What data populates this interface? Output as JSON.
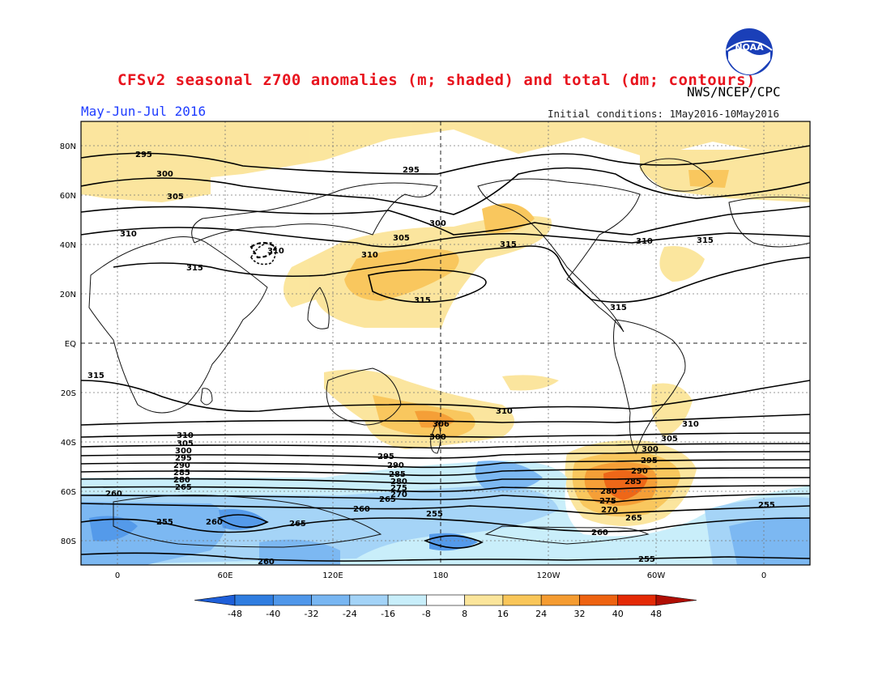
{
  "header": {
    "title": "CFSv2 seasonal z700 anomalies (m; shaded) and total (dm; contours)",
    "agency": "NWS/NCEP/CPC",
    "period": "May-Jun-Jul 2016",
    "initial_conditions": "Initial conditions: 1May2016-10May2016",
    "logo_text": "NOAA"
  },
  "map": {
    "lat_labels": [
      "80N",
      "60N",
      "40N",
      "20N",
      "EQ",
      "20S",
      "40S",
      "60S",
      "80S"
    ],
    "lon_labels": [
      "0",
      "60E",
      "120E",
      "180",
      "120W",
      "60W",
      "0"
    ],
    "contour_labels": [
      "295",
      "300",
      "305",
      "310",
      "315",
      "300",
      "295",
      "315",
      "305",
      "310",
      "315",
      "310",
      "315",
      "315",
      "310",
      "315",
      "306",
      "300",
      "310",
      "305",
      "310",
      "300",
      "295",
      "290",
      "285",
      "280",
      "275",
      "270",
      "265",
      "260",
      "255",
      "260",
      "265",
      "260",
      "255",
      "295",
      "290",
      "285",
      "280",
      "275",
      "270",
      "265",
      "255",
      "260",
      "255",
      "260"
    ]
  },
  "colorbar": {
    "ticks": [
      "-48",
      "-40",
      "-32",
      "-24",
      "-16",
      "-8",
      "8",
      "16",
      "24",
      "32",
      "40",
      "48"
    ],
    "colors": [
      "#1e5fd9",
      "#2f7de0",
      "#4f97ea",
      "#78b6f2",
      "#a3d3f7",
      "#c8eefa",
      "#ffffff",
      "#fbe59b",
      "#f9c659",
      "#f59c31",
      "#ee6311",
      "#e42a06",
      "#b00e04"
    ]
  },
  "chart_data": {
    "type": "heatmap",
    "title": "CFSv2 seasonal z700 anomalies (m; shaded) and total (dm; contours)",
    "period": "May-Jun-Jul 2016",
    "levels": [
      -48,
      -40,
      -32,
      -24,
      -16,
      -8,
      8,
      16,
      24,
      32,
      40,
      48
    ],
    "units": "m"
  }
}
